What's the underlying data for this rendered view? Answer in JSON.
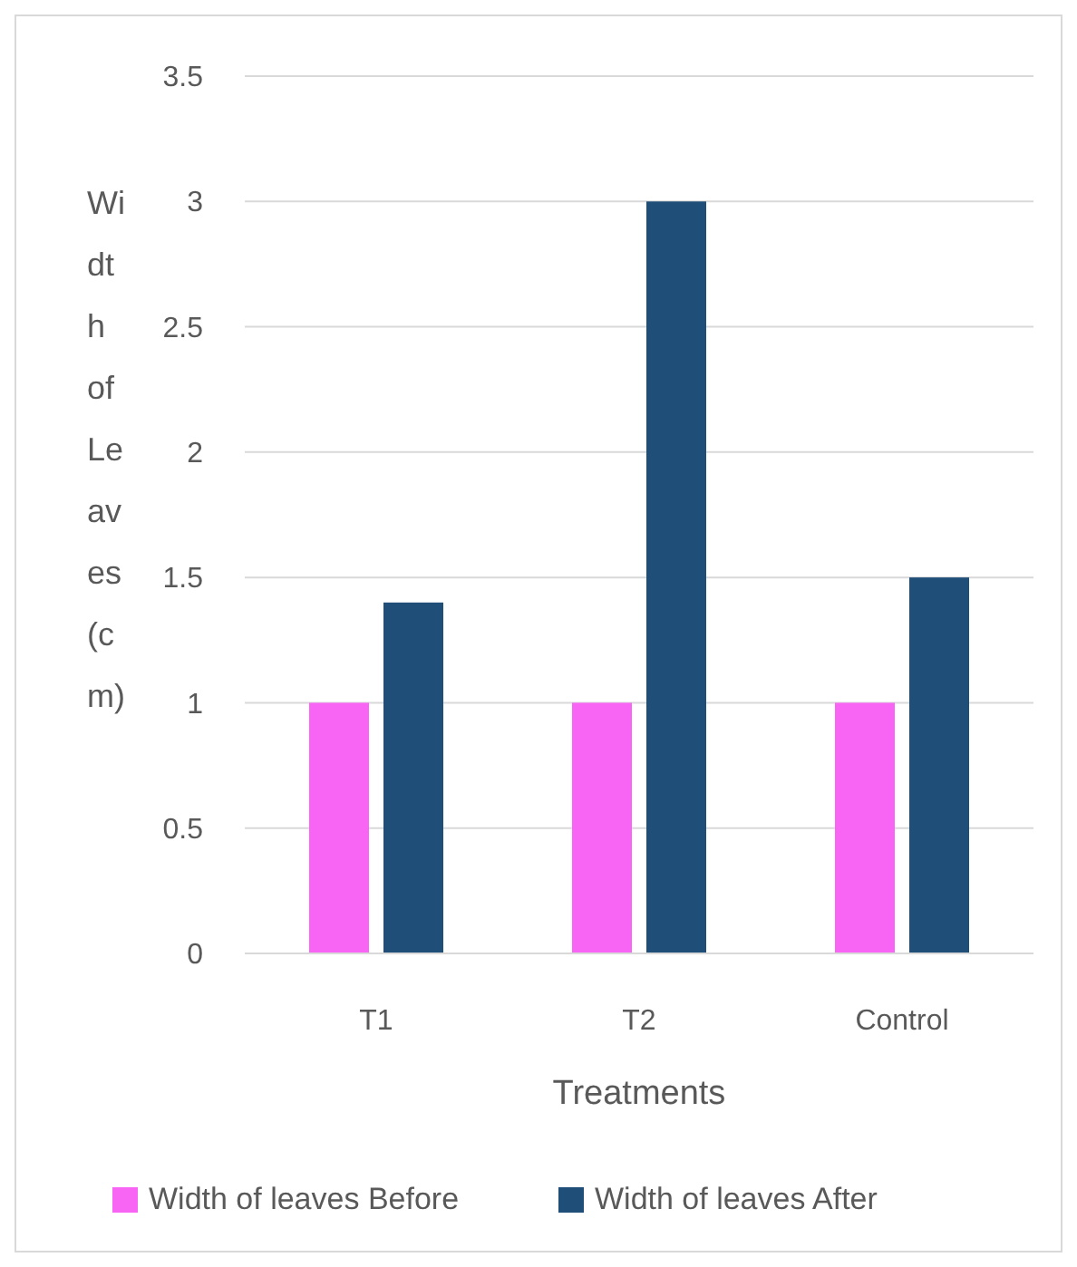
{
  "chart_data": {
    "type": "bar",
    "xlabel": "Treatments",
    "ylabel": "Width of Leaves (cm)",
    "categories": [
      "T1",
      "T2",
      "Control"
    ],
    "series": [
      {
        "name": "Width of leaves Before",
        "color": "#f865f5",
        "values": [
          1,
          1,
          1
        ]
      },
      {
        "name": "Width of leaves After",
        "color": "#1f4e79",
        "values": [
          1.4,
          3,
          1.5
        ]
      }
    ],
    "ylim": [
      0,
      3.5
    ],
    "yticks": [
      0,
      0.5,
      1,
      1.5,
      2,
      2.5,
      3,
      3.5
    ],
    "grid": "y",
    "legend": "bottom"
  }
}
